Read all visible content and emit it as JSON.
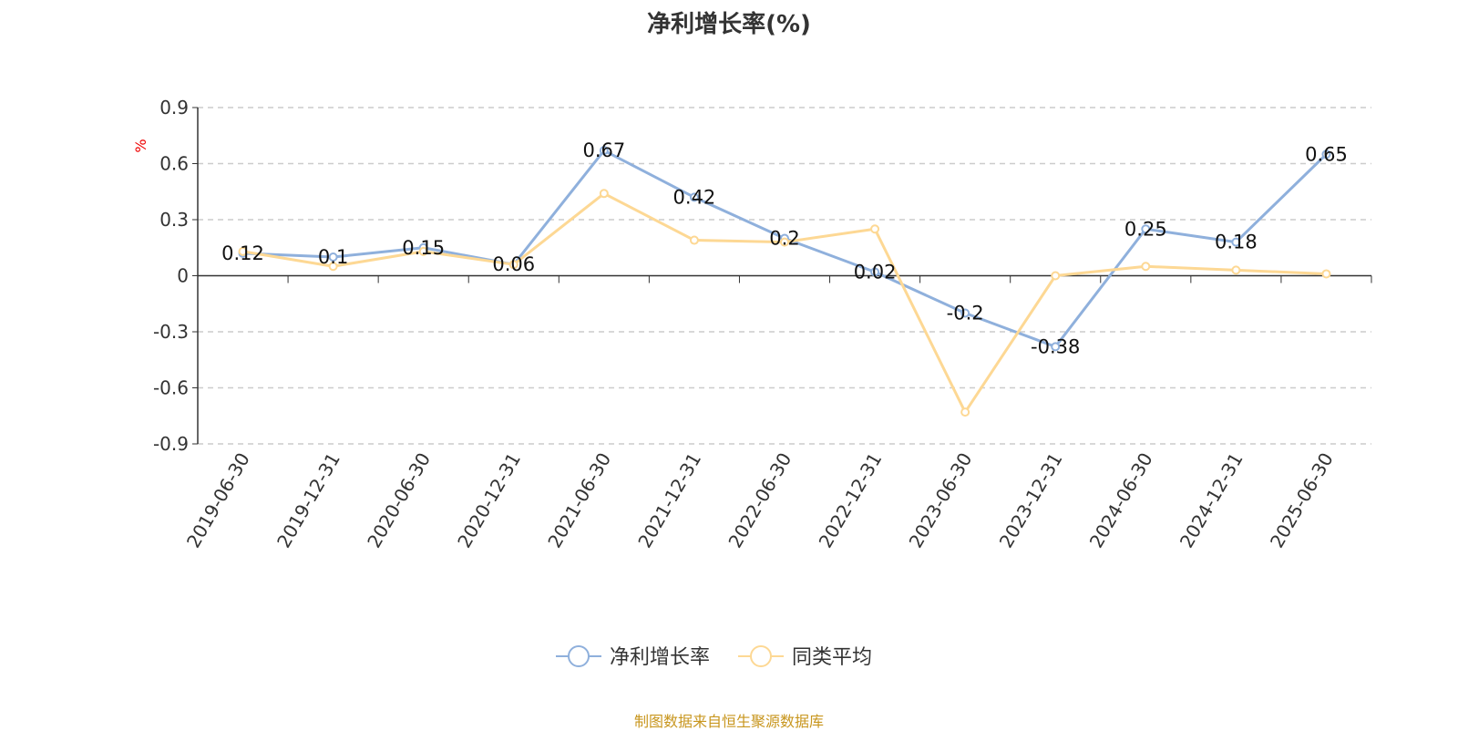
{
  "chart_data": {
    "type": "line",
    "title": "净利增长率(%)",
    "ylabel": "%",
    "xlabel": "",
    "ylim": [
      -0.9,
      0.9
    ],
    "yticks": [
      -0.9,
      -0.6,
      -0.3,
      0,
      0.3,
      0.6,
      0.9
    ],
    "ytick_labels": [
      "-0.9",
      "-0.6",
      "-0.3",
      "0",
      "0.3",
      "0.6",
      "0.9"
    ],
    "grid": true,
    "legend_position": "bottom",
    "categories": [
      "2019-06-30",
      "2019-12-31",
      "2020-06-30",
      "2020-12-31",
      "2021-06-30",
      "2021-12-31",
      "2022-06-30",
      "2022-12-31",
      "2023-06-30",
      "2023-12-31",
      "2024-06-30",
      "2024-12-31",
      "2025-06-30"
    ],
    "series": [
      {
        "name": "净利增长率",
        "color": "#8fb0dc",
        "labels": true,
        "values": [
          0.12,
          0.1,
          0.15,
          0.06,
          0.67,
          0.42,
          0.2,
          0.02,
          -0.2,
          -0.38,
          0.25,
          0.18,
          0.65
        ],
        "value_labels": [
          "0.12",
          "0.1",
          "0.15",
          "0.06",
          "0.67",
          "0.42",
          "0.2",
          "0.02",
          "-0.2",
          "-0.38",
          "0.25",
          "0.18",
          "0.65"
        ]
      },
      {
        "name": "同类平均",
        "color": "#fdd894",
        "labels": false,
        "values": [
          0.13,
          0.05,
          0.13,
          0.06,
          0.44,
          0.19,
          0.18,
          0.25,
          -0.73,
          0.0,
          0.05,
          0.03,
          0.01
        ]
      }
    ]
  },
  "source": "制图数据来自恒生聚源数据库"
}
